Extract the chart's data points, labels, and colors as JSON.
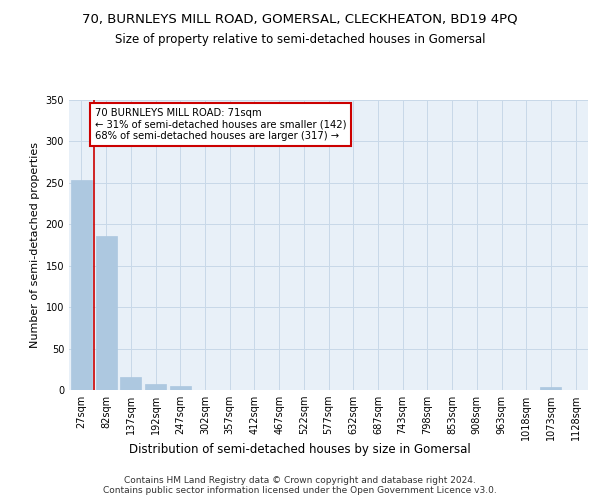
{
  "title1": "70, BURNLEYS MILL ROAD, GOMERSAL, CLECKHEATON, BD19 4PQ",
  "title2": "Size of property relative to semi-detached houses in Gomersal",
  "xlabel": "Distribution of semi-detached houses by size in Gomersal",
  "ylabel": "Number of semi-detached properties",
  "footer": "Contains HM Land Registry data © Crown copyright and database right 2024.\nContains public sector information licensed under the Open Government Licence v3.0.",
  "bin_labels": [
    "27sqm",
    "82sqm",
    "137sqm",
    "192sqm",
    "247sqm",
    "302sqm",
    "357sqm",
    "412sqm",
    "467sqm",
    "522sqm",
    "577sqm",
    "632sqm",
    "687sqm",
    "743sqm",
    "798sqm",
    "853sqm",
    "908sqm",
    "963sqm",
    "1018sqm",
    "1073sqm",
    "1128sqm"
  ],
  "bar_values": [
    253,
    186,
    16,
    7,
    5,
    0,
    0,
    0,
    0,
    0,
    0,
    0,
    0,
    0,
    0,
    0,
    0,
    0,
    0,
    4,
    0
  ],
  "bar_color": "#adc8e0",
  "bar_edgecolor": "#adc8e0",
  "bar_width": 0.85,
  "property_line_color": "#cc0000",
  "annotation_text": "70 BURNLEYS MILL ROAD: 71sqm\n← 31% of semi-detached houses are smaller (142)\n68% of semi-detached houses are larger (317) →",
  "ylim": [
    0,
    350
  ],
  "yticks": [
    0,
    50,
    100,
    150,
    200,
    250,
    300,
    350
  ],
  "grid_color": "#c8d8e8",
  "bg_color": "#e8f0f8",
  "title1_fontsize": 9.5,
  "title2_fontsize": 8.5,
  "xlabel_fontsize": 8.5,
  "ylabel_fontsize": 8,
  "tick_fontsize": 7,
  "footer_fontsize": 6.5
}
